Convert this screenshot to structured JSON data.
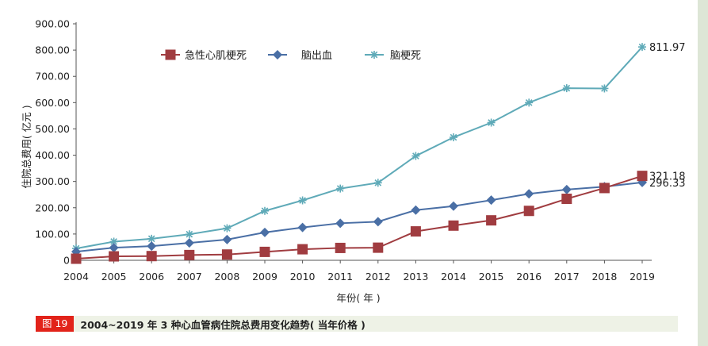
{
  "chart_data": {
    "type": "line",
    "ylabel": "住院总费用( 亿元 )",
    "xlabel": "年份( 年 )",
    "ylim": [
      0,
      900
    ],
    "y_ticks": [
      "0",
      "100.00",
      "200.00",
      "300.00",
      "400.00",
      "500.00",
      "600.00",
      "700.00",
      "800.00",
      "900.00"
    ],
    "y_tick_values": [
      0,
      100,
      200,
      300,
      400,
      500,
      600,
      700,
      800,
      900
    ],
    "categories": [
      "2004",
      "2005",
      "2006",
      "2007",
      "2008",
      "2009",
      "2010",
      "2011",
      "2012",
      "2013",
      "2014",
      "2015",
      "2016",
      "2017",
      "2018",
      "2019"
    ],
    "grid": false,
    "legend_position": "top-left",
    "series": [
      {
        "name": "急性心肌梗死",
        "color": "#a03c40",
        "marker": "square",
        "values": [
          6,
          15,
          16,
          20,
          22,
          32,
          42,
          47,
          48,
          110,
          132,
          152,
          188,
          234,
          275,
          321.18
        ],
        "end_label": "321.18"
      },
      {
        "name": "脑出血",
        "color": "#4a6fa5",
        "marker": "diamond",
        "values": [
          33,
          48,
          54,
          66,
          79,
          106,
          125,
          141,
          147,
          191,
          206,
          229,
          253,
          269,
          280,
          296.33
        ],
        "end_label": "296.33"
      },
      {
        "name": "脑梗死",
        "color": "#5faab8",
        "marker": "asterisk",
        "values": [
          45,
          71,
          82,
          99,
          122,
          188,
          228,
          273,
          295,
          397,
          468,
          524,
          600,
          655,
          654,
          811.97
        ],
        "end_label": "811.97"
      }
    ]
  },
  "caption": {
    "badge": "图 19",
    "text": "2004~2019 年 3 种心血管病住院总费用变化趋势( 当年价格 )"
  }
}
